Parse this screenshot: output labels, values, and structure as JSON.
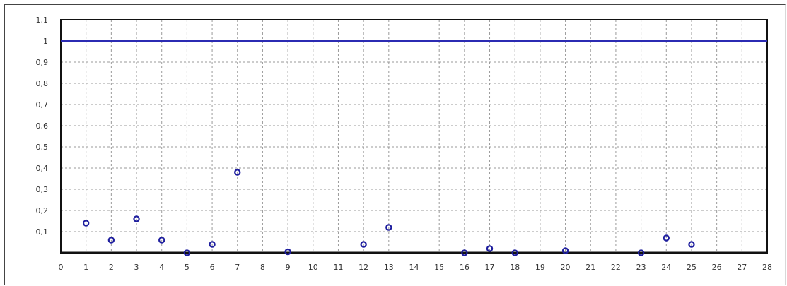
{
  "chart_data": {
    "type": "scatter",
    "title": "",
    "xlabel": "",
    "ylabel": "",
    "xlim": [
      0,
      28
    ],
    "ylim": [
      0,
      1.1
    ],
    "grid": true,
    "x_ticks": [
      "0",
      "1",
      "2",
      "3",
      "4",
      "5",
      "6",
      "7",
      "8",
      "9",
      "10",
      "11",
      "12",
      "13",
      "14",
      "15",
      "16",
      "17",
      "18",
      "19",
      "20",
      "21",
      "22",
      "23",
      "24",
      "25",
      "26",
      "27",
      "28"
    ],
    "y_ticks": [
      "0,1",
      "0,2",
      "0,3",
      "0,4",
      "0,5",
      "0,6",
      "0,7",
      "0,8",
      "0,9",
      "1",
      "1,1"
    ],
    "reference_line": {
      "y": 1.0,
      "color": "#2b2bb3"
    },
    "series": [
      {
        "color": "#1e1e9e",
        "points": [
          {
            "x": 1,
            "y": 0.14
          },
          {
            "x": 2,
            "y": 0.06
          },
          {
            "x": 3,
            "y": 0.16
          },
          {
            "x": 4,
            "y": 0.06
          },
          {
            "x": 5,
            "y": 0.0
          },
          {
            "x": 6,
            "y": 0.04
          },
          {
            "x": 7,
            "y": 0.38
          },
          {
            "x": 9,
            "y": 0.005
          },
          {
            "x": 12,
            "y": 0.04
          },
          {
            "x": 13,
            "y": 0.12
          },
          {
            "x": 16,
            "y": 0.0
          },
          {
            "x": 17,
            "y": 0.02
          },
          {
            "x": 18,
            "y": 0.0
          },
          {
            "x": 20,
            "y": 0.01
          },
          {
            "x": 23,
            "y": 0.0
          },
          {
            "x": 24,
            "y": 0.07
          },
          {
            "x": 25,
            "y": 0.04
          }
        ]
      }
    ]
  }
}
